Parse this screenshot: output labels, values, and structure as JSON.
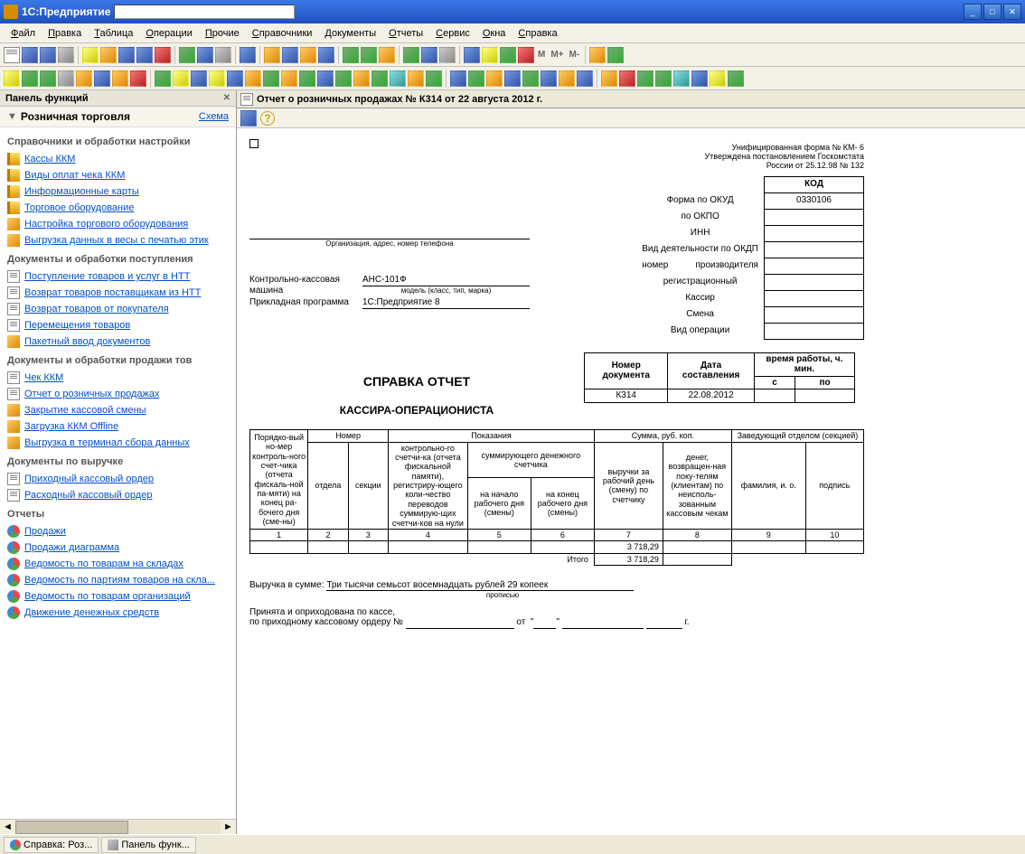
{
  "window": {
    "title": "1С:Предприятие"
  },
  "menu": [
    "Файл",
    "Правка",
    "Таблица",
    "Операции",
    "Прочие",
    "Справочники",
    "Документы",
    "Отчеты",
    "Сервис",
    "Окна",
    "Справка"
  ],
  "toolbar_text": {
    "M": "M",
    "Mplus": "M+",
    "Mminus": "M-"
  },
  "sidebar": {
    "header": "Панель функций",
    "pane_title": "Розничная торговля",
    "scheme": "Схема",
    "sections": [
      {
        "title": "Справочники и обработки настройки",
        "items": [
          {
            "label": "Кассы ККМ",
            "ico": "ico-book"
          },
          {
            "label": "Виды оплат чека ККМ",
            "ico": "ico-book"
          },
          {
            "label": "Информационные карты",
            "ico": "ico-book"
          },
          {
            "label": "Торговое оборудование",
            "ico": "ico-book"
          },
          {
            "label": "Настройка торгового оборудования",
            "ico": "ico-or"
          },
          {
            "label": "Выгрузка данных в весы с печатью этик",
            "ico": "ico-or"
          }
        ]
      },
      {
        "title": "Документы и обработки поступления",
        "items": [
          {
            "label": "Поступление товаров и услуг в НТТ",
            "ico": "ico-doc"
          },
          {
            "label": "Возврат товаров поставщикам из НТТ",
            "ico": "ico-doc"
          },
          {
            "label": "Возврат товаров от покупателя",
            "ico": "ico-doc"
          },
          {
            "label": "Перемещения товаров",
            "ico": "ico-doc"
          },
          {
            "label": "Пакетный ввод документов",
            "ico": "ico-or"
          }
        ]
      },
      {
        "title": "Документы и обработки продажи тов",
        "items": [
          {
            "label": "Чек ККМ",
            "ico": "ico-doc"
          },
          {
            "label": "Отчет о розничных продажах",
            "ico": "ico-doc"
          },
          {
            "label": "Закрытие кассовой смены",
            "ico": "ico-or"
          },
          {
            "label": "Загрузка ККМ Offline",
            "ico": "ico-or"
          },
          {
            "label": "Выгрузка в терминал сбора данных",
            "ico": "ico-or"
          }
        ]
      },
      {
        "title": "Документы по выручке",
        "items": [
          {
            "label": "Приходный кассовый ордер",
            "ico": "ico-doc"
          },
          {
            "label": "Расходный кассовый ордер",
            "ico": "ico-doc"
          }
        ]
      },
      {
        "title": "Отчеты",
        "items": [
          {
            "label": "Продажи",
            "ico": "ico-pie"
          },
          {
            "label": "Продажи диаграмма",
            "ico": "ico-pie"
          },
          {
            "label": "Ведомость по товарам на складах",
            "ico": "ico-pie"
          },
          {
            "label": "Ведомость по партиям товаров на скла...",
            "ico": "ico-pie"
          },
          {
            "label": "Ведомость по товарам организаций",
            "ico": "ico-pie"
          },
          {
            "label": "Движение денежных средств",
            "ico": "ico-pie"
          }
        ]
      }
    ]
  },
  "document": {
    "tab_title": "Отчет о розничных продажах № К314 от 22 августа 2012 г.",
    "form_header": {
      "form_line1": "Унифицированная форма № КМ- 6",
      "form_line2": "Утверждена   постановлением Госкомстата",
      "form_line3": "России от  25.12.98  № 132"
    },
    "okud": {
      "kod_label": "КОД",
      "rows": [
        {
          "label": "Форма по ОКУД",
          "value": "0330106"
        },
        {
          "label": "по ОКПО",
          "value": ""
        },
        {
          "label": "ИНН",
          "value": ""
        },
        {
          "label": "Вид деятельности по ОКДП",
          "value": ""
        },
        {
          "label": "производителя",
          "prefix": "номер",
          "value": ""
        },
        {
          "label": "регистрационный",
          "value": ""
        },
        {
          "label": "Кассир",
          "value": ""
        },
        {
          "label": "Смена",
          "value": ""
        },
        {
          "label": "Вид операции",
          "value": ""
        }
      ]
    },
    "org_caption": "Организация, адрес, номер телефона",
    "kkm": {
      "label": "Контрольно-кассовая машина",
      "model": "АНС-101Ф",
      "model_cap": "модель (класс, тип, марка)"
    },
    "app": {
      "label": "Прикладная программа",
      "value": "1С:Предприятие 8"
    },
    "title": "СПРАВКА ОТЧЕТ",
    "subtitle": "КАССИРА-ОПЕРАЦИОНИСТА",
    "head_table": {
      "cols": [
        "Номер документа",
        "Дата составления",
        "время работы, ч. мин."
      ],
      "sub": [
        "с",
        "по"
      ],
      "vals": [
        "К314",
        "22.08.2012",
        "",
        ""
      ]
    },
    "main_headers": {
      "c1": "Порядко-вый но-мер контроль-ного счет-чика (отчета фискаль-ной па-мяти) на конец ра-бочего дня (сме-ны)",
      "c2": "Номер",
      "c2a": "отдела",
      "c2b": "секции",
      "c3": "Показания",
      "c3a": "контрольно-го счетчи-ка (отчета фискальной памяти), регистриру-ющего коли-чество переводов суммирую-щих счетчи-ков на нули",
      "c3s": "суммирующего денежного счетчика",
      "c3b": "на начало рабочего дня (смены)",
      "c3c": "на конец рабочего дня (смены)",
      "c4": "Сумма, руб. коп.",
      "c4a": "выручки за рабочий день (смену) по счетчику",
      "c4b": "денег, возвращен-ная поку-телям (клиентам) по неисполь-зованным кассовым чекам",
      "c5": "Заведующий отделом (секцией)",
      "c5a": "фамилия, и. о.",
      "c5b": "подпись"
    },
    "col_nums": [
      "1",
      "2",
      "3",
      "4",
      "5",
      "6",
      "7",
      "8",
      "9",
      "10"
    ],
    "row1": {
      "c7": "3 718,29"
    },
    "totals": {
      "label": "Итого",
      "c7": "3 718,29"
    },
    "footer": {
      "vyruchka_lbl": "Выручка в сумме:",
      "vyruchka_txt": "Три тысячи семьсот восемнадцать рублей 29 копеек",
      "propis": "прописью",
      "line1": "Принята и оприходована по кассе,",
      "line2": "по приходному кассовому ордеру №",
      "ot": "от",
      "dot": "\"",
      "g": "г."
    }
  },
  "taskbar": [
    {
      "label": "Справка: Роз...",
      "ico": "ico-pie"
    },
    {
      "label": "Панель функ...",
      "ico": "ico-gy"
    }
  ]
}
